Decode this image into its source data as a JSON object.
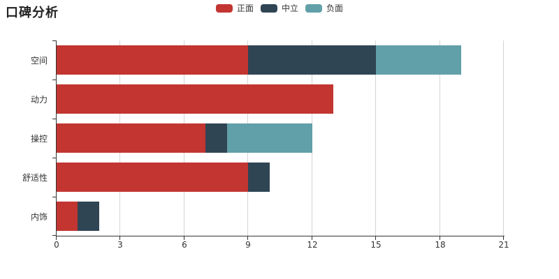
{
  "chart_data": {
    "type": "bar",
    "orientation": "horizontal",
    "stacked": true,
    "title": "口碑分析",
    "categories": [
      "空间",
      "动力",
      "操控",
      "舒适性",
      "内饰"
    ],
    "series": [
      {
        "name": "正面",
        "color": "#c23531",
        "values": [
          9,
          13,
          7,
          9,
          1
        ]
      },
      {
        "name": "中立",
        "color": "#2f4554",
        "values": [
          6,
          0,
          1,
          1,
          1
        ]
      },
      {
        "name": "负面",
        "color": "#61a0a8",
        "values": [
          4,
          0,
          4,
          0,
          0
        ]
      }
    ],
    "xticks": [
      0,
      3,
      6,
      9,
      12,
      15,
      18,
      21
    ],
    "xlim": [
      0,
      21
    ],
    "grid": true,
    "legend_position": "top-center",
    "legend_icon": "rounded-rect"
  },
  "colors": {
    "background": "#ffffff",
    "axis": "#333333",
    "gridline": "#d4d4d4",
    "text": "#333333"
  }
}
